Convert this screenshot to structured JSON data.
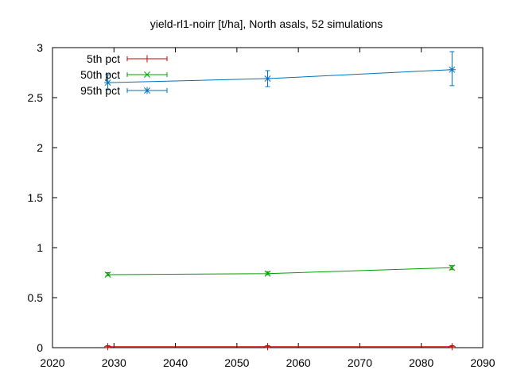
{
  "chart_data": {
    "type": "line",
    "title": "yield-rl1-noirr [t/ha], North asals, 52 simulations",
    "xlabel": "",
    "ylabel": "",
    "xlim": [
      2020,
      2090
    ],
    "ylim": [
      0,
      3
    ],
    "x_ticks": [
      2020,
      2030,
      2040,
      2050,
      2060,
      2070,
      2080,
      2090
    ],
    "y_ticks": [
      0,
      0.5,
      1,
      1.5,
      2,
      2.5,
      3
    ],
    "y_tick_labels": [
      "0",
      "0.5",
      "1",
      "1.5",
      "2",
      "2.5",
      "3"
    ],
    "grid": false,
    "legend_position": "top-left",
    "series": [
      {
        "name": "5th pct",
        "color": "#cc0000",
        "marker": "plus",
        "x": [
          2029,
          2055,
          2085
        ],
        "values": [
          0.01,
          0.01,
          0.01
        ],
        "err_low": [
          0.0,
          0.0,
          0.0
        ],
        "err_high": [
          0.02,
          0.02,
          0.02
        ]
      },
      {
        "name": "50th pct",
        "color": "#00a000",
        "marker": "cross",
        "x": [
          2029,
          2055,
          2085
        ],
        "values": [
          0.73,
          0.74,
          0.8
        ],
        "err_low": [
          0.72,
          0.73,
          0.78
        ],
        "err_high": [
          0.75,
          0.76,
          0.82
        ]
      },
      {
        "name": "95th pct",
        "color": "#0072bd",
        "marker": "star",
        "x": [
          2029,
          2055,
          2085
        ],
        "values": [
          2.65,
          2.69,
          2.78
        ],
        "err_low": [
          2.58,
          2.61,
          2.62
        ],
        "err_high": [
          2.73,
          2.77,
          2.96
        ]
      }
    ]
  }
}
